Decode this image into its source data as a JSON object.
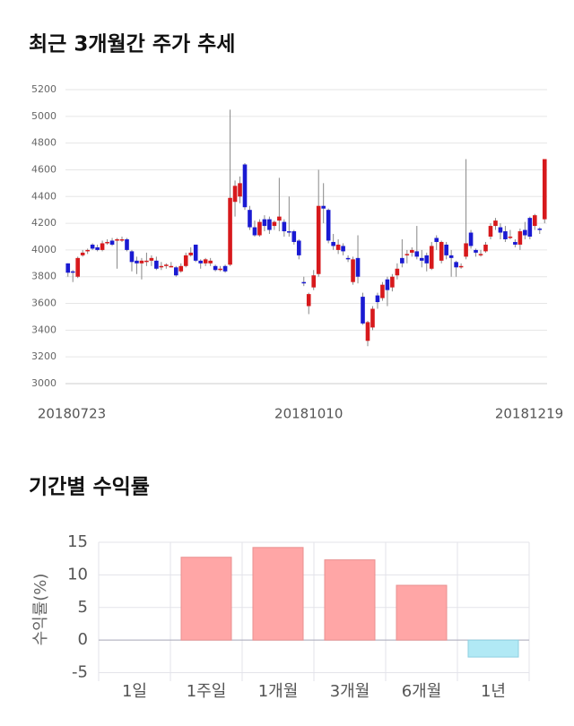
{
  "chart_data": [
    {
      "type": "candlestick",
      "title": "최근 3개월간 주가 추세",
      "categories": [
        "20180723",
        null,
        null,
        null,
        null,
        null,
        null,
        null,
        null,
        null,
        null,
        null,
        null,
        null,
        null,
        null,
        null,
        null,
        null,
        null,
        null,
        null,
        null,
        null,
        null,
        null,
        null,
        null,
        null,
        null,
        null,
        null,
        null,
        null,
        null,
        null,
        null,
        null,
        null,
        null,
        null,
        null,
        null,
        null,
        null,
        null,
        null,
        null,
        null,
        "20181010",
        null,
        null,
        null,
        null,
        null,
        null,
        null,
        null,
        null,
        null,
        null,
        null,
        null,
        null,
        null,
        null,
        null,
        null,
        null,
        null,
        null,
        null,
        null,
        null,
        null,
        null,
        null,
        null,
        null,
        null,
        null,
        null,
        null,
        null,
        null,
        null,
        null,
        null,
        null,
        null,
        null,
        null,
        null,
        null,
        null,
        null,
        null,
        "20181219"
      ],
      "open": [
        3900,
        3840,
        3800,
        3960,
        3990,
        4040,
        4020,
        4000,
        4060,
        4070,
        4070,
        4080,
        4080,
        3990,
        3920,
        3900,
        3920,
        3920,
        3920,
        3880,
        3880,
        3880,
        3870,
        3840,
        3880,
        3960,
        4040,
        3920,
        3900,
        3900,
        3880,
        3860,
        3880,
        3890,
        4360,
        4400,
        4640,
        4300,
        4170,
        4110,
        4230,
        4230,
        4180,
        4220,
        4210,
        4140,
        4140,
        4070,
        3760,
        3580,
        3720,
        3820,
        4330,
        4300,
        4060,
        4000,
        4030,
        3940,
        3760,
        3940,
        3650,
        3320,
        3420,
        3660,
        3640,
        3780,
        3720,
        3810,
        3940,
        3960,
        3980,
        3990,
        3940,
        3960,
        3860,
        4090,
        3920,
        4040,
        3960,
        3910,
        3880,
        3950,
        4130,
        4000,
        3970,
        3990,
        4100,
        4180,
        4170,
        4140,
        4090,
        4060,
        4040,
        4150,
        4240,
        4180,
        4160,
        4230
      ],
      "high": [
        3900,
        3850,
        3950,
        4000,
        4010,
        4050,
        4040,
        4070,
        4080,
        4090,
        4090,
        4100,
        4090,
        4000,
        3950,
        3940,
        3980,
        3960,
        3950,
        3910,
        3900,
        3910,
        3880,
        3900,
        3980,
        4020,
        4040,
        3930,
        3940,
        3940,
        3890,
        3880,
        3890,
        5050,
        4520,
        4550,
        4650,
        4330,
        4220,
        4230,
        4260,
        4250,
        4220,
        4540,
        4230,
        4400,
        4150,
        4080,
        3800,
        3680,
        3850,
        4600,
        4500,
        4310,
        4120,
        4080,
        4050,
        3960,
        3950,
        4110,
        3680,
        3470,
        3580,
        3680,
        3760,
        3800,
        3820,
        3900,
        4080,
        4000,
        4020,
        4180,
        4000,
        3980,
        4060,
        4110,
        4070,
        4060,
        4000,
        3920,
        3900,
        4680,
        4150,
        4010,
        4000,
        4060,
        4200,
        4240,
        4200,
        4180,
        4150,
        4080,
        4160,
        4210,
        4250,
        4270,
        4170,
        4680
      ],
      "low": [
        3800,
        3760,
        3790,
        3950,
        3970,
        4000,
        3990,
        3990,
        4040,
        4030,
        3860,
        4060,
        3990,
        3840,
        3820,
        3780,
        3880,
        3880,
        3850,
        3850,
        3860,
        3870,
        3800,
        3830,
        3870,
        3950,
        3910,
        3860,
        3880,
        3880,
        3840,
        3840,
        3830,
        3880,
        4250,
        4350,
        4300,
        4150,
        4100,
        4100,
        4140,
        4120,
        4150,
        4140,
        4100,
        4100,
        4040,
        3930,
        3730,
        3520,
        3700,
        3800,
        4200,
        4050,
        4000,
        3970,
        3960,
        3910,
        3740,
        3750,
        3440,
        3280,
        3400,
        3560,
        3620,
        3580,
        3690,
        3780,
        3870,
        3900,
        3950,
        3930,
        3870,
        3840,
        3850,
        4000,
        3900,
        3930,
        3800,
        3800,
        3860,
        3930,
        4010,
        3950,
        3950,
        3980,
        4080,
        4150,
        4080,
        4060,
        4080,
        4020,
        4000,
        4080,
        4080,
        4150,
        4120,
        4200
      ],
      "close": [
        3830,
        3830,
        3940,
        3980,
        4000,
        4010,
        4000,
        4050,
        4060,
        4040,
        4080,
        4080,
        4000,
        3910,
        3900,
        3920,
        3920,
        3940,
        3860,
        3880,
        3890,
        3880,
        3810,
        3880,
        3960,
        3980,
        3920,
        3900,
        3930,
        3920,
        3850,
        3860,
        3840,
        4390,
        4480,
        4500,
        4320,
        4170,
        4110,
        4210,
        4180,
        4150,
        4210,
        4250,
        4140,
        4130,
        4060,
        3960,
        3750,
        3670,
        3810,
        4330,
        4310,
        4070,
        4030,
        4040,
        3990,
        3930,
        3930,
        3800,
        3450,
        3460,
        3560,
        3610,
        3740,
        3700,
        3800,
        3860,
        3900,
        3970,
        4000,
        3950,
        3920,
        3900,
        4030,
        4060,
        4060,
        3960,
        3940,
        3870,
        3880,
        4050,
        4030,
        3980,
        3970,
        4040,
        4180,
        4220,
        4130,
        4080,
        4100,
        4040,
        4140,
        4110,
        4100,
        4260,
        4150,
        4680
      ],
      "ylim": [
        3000,
        5200
      ],
      "yticks": [
        3000,
        3200,
        3400,
        3600,
        3800,
        4000,
        4200,
        4400,
        4600,
        4800,
        5000,
        5200
      ],
      "up_color": "#d7191c",
      "down_color": "#1a1ad2",
      "grid": true
    },
    {
      "type": "bar",
      "title": "기간별 수익률",
      "ylabel": "수익률(%)",
      "categories": [
        "1일",
        "1주일",
        "1개월",
        "3개월",
        "6개월",
        "1년"
      ],
      "values": [
        0,
        12.7,
        14.2,
        12.3,
        8.4,
        -2.6
      ],
      "ylim": [
        -6.3,
        15
      ],
      "yticks": [
        -5,
        0,
        5,
        10,
        15
      ],
      "positive_color": "#ffa6a6",
      "negative_color": "#b1e9f5",
      "grid": true
    }
  ]
}
